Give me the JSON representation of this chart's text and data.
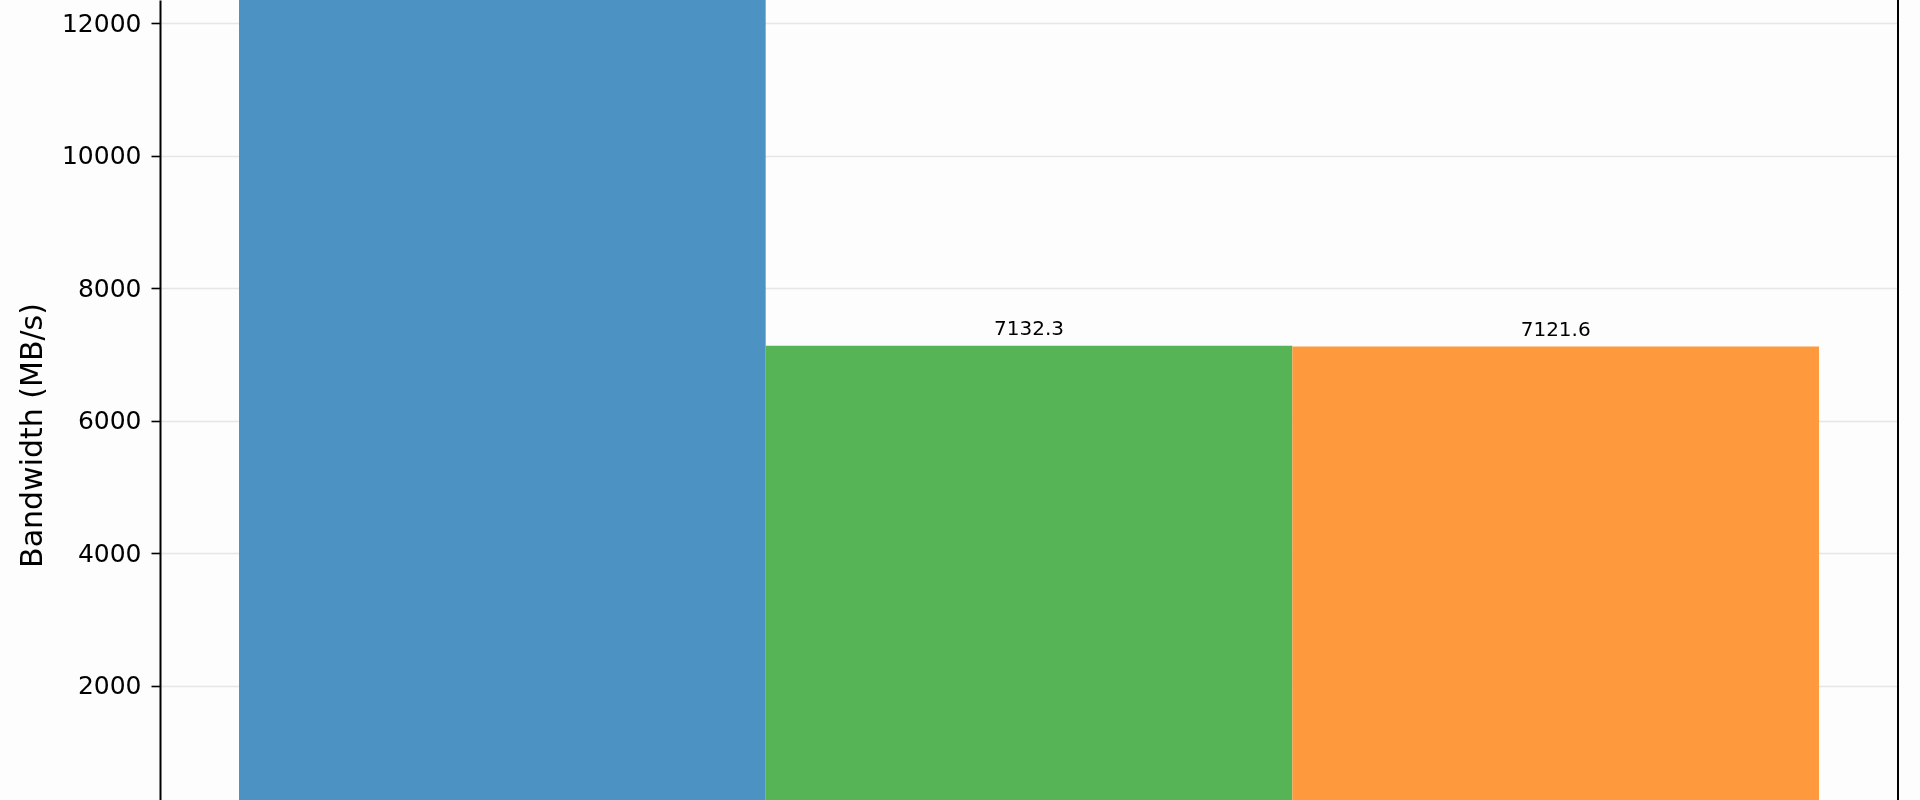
{
  "chart_data": {
    "type": "bar",
    "ylabel": "Bandwidth (MB/s)",
    "categories": [
      null,
      null,
      null
    ],
    "values": [
      12350,
      7132.3,
      7121.6
    ],
    "colors": [
      "#4c92c3",
      "#56b356",
      "#ff993e"
    ],
    "value_labels": [
      null,
      "7132.3",
      "7121.6"
    ],
    "ylim": [
      280,
      12350
    ],
    "yticks": [
      2000,
      4000,
      6000,
      8000,
      10000,
      12000
    ],
    "grid": "y"
  }
}
